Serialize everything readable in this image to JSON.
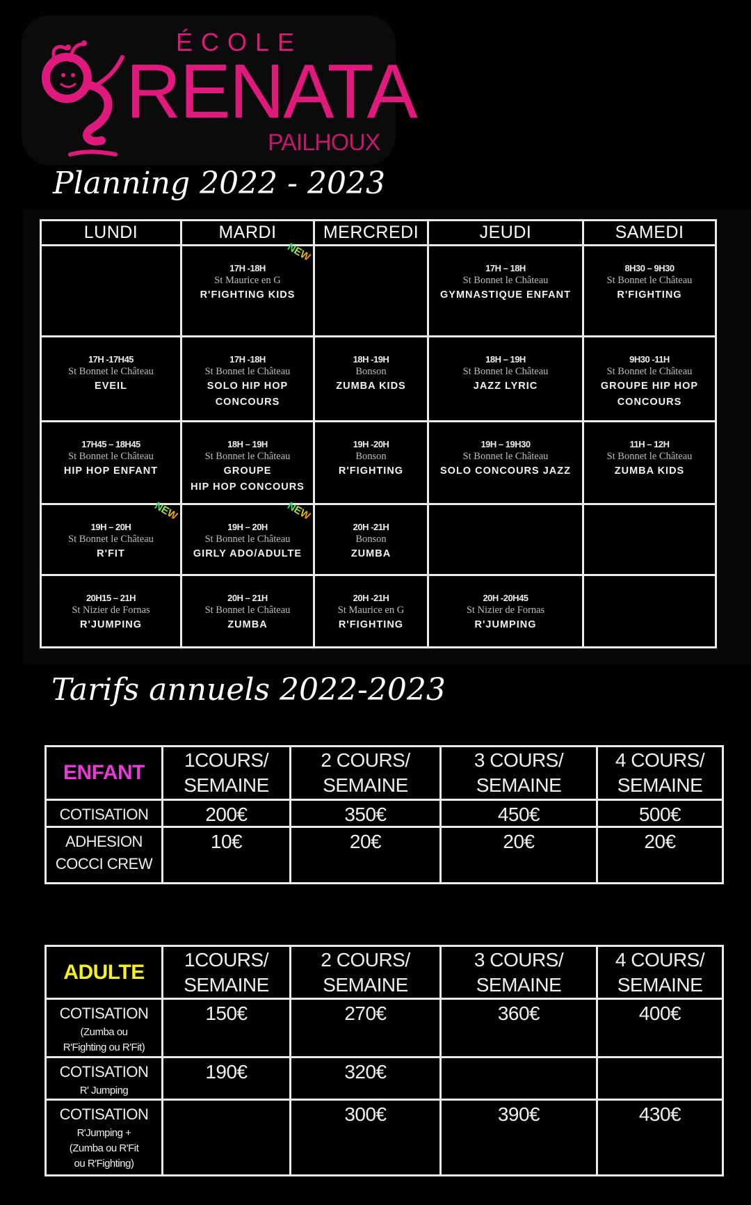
{
  "logo": {
    "ecole": "ÉCOLE",
    "renata": "RENATA",
    "pailhoux": "PAILHOUX",
    "color": "#e0197d"
  },
  "planning": {
    "title": "Planning 2022 - 2023",
    "days": [
      "LUNDI",
      "MARDI",
      "MERCREDI",
      "JEUDI",
      "SAMEDI"
    ],
    "new_badge": "NEW",
    "rows": [
      [
        null,
        {
          "time": "17H -18H",
          "location": "St Maurice en G",
          "class": [
            "R'FIGHTING KIDS"
          ],
          "new": true
        },
        null,
        {
          "time": "17H – 18H",
          "location": "St Bonnet le Château",
          "class": [
            "GYMNASTIQUE ENFANT"
          ]
        },
        {
          "time": "8H30 – 9H30",
          "location": "St Bonnet le Château",
          "class": [
            "R'FIGHTING"
          ]
        }
      ],
      [
        {
          "time": "17H -17H45",
          "location": "St Bonnet le Château",
          "class": [
            "EVEIL"
          ]
        },
        {
          "time": "17H -18H",
          "location": "St Bonnet le Château",
          "class": [
            "SOLO HIP HOP",
            "CONCOURS"
          ]
        },
        {
          "time": "18H -19H",
          "location": "Bonson",
          "class": [
            "ZUMBA KIDS"
          ]
        },
        {
          "time": "18H – 19H",
          "location": "St Bonnet le Château",
          "class": [
            "JAZZ LYRIC"
          ]
        },
        {
          "time": "9H30 -11H",
          "location": "St Bonnet le Château",
          "class": [
            "GROUPE HIP HOP",
            "CONCOURS"
          ]
        }
      ],
      [
        {
          "time": "17H45 – 18H45",
          "location": "St Bonnet le Château",
          "class": [
            "HIP HOP ENFANT"
          ]
        },
        {
          "time": "18H – 19H",
          "location": "St Bonnet le Château",
          "class": [
            "GROUPE",
            "HIP HOP CONCOURS"
          ]
        },
        {
          "time": "19H -20H",
          "location": "Bonson",
          "class": [
            "R'FIGHTING"
          ]
        },
        {
          "time": "19H – 19H30",
          "location": "St Bonnet le Château",
          "class": [
            "SOLO CONCOURS JAZZ"
          ]
        },
        {
          "time": "11H – 12H",
          "location": "St Bonnet le Château",
          "class": [
            "ZUMBA KIDS"
          ]
        }
      ],
      [
        {
          "time": "19H – 20H",
          "location": "St Bonnet le Château",
          "class": [
            "R'FIT"
          ],
          "new": true
        },
        {
          "time": "19H – 20H",
          "location": "St Bonnet le Château",
          "class": [
            "GIRLY ADO/ADULTE"
          ],
          "new": true
        },
        {
          "time": "20H -21H",
          "location": "Bonson",
          "class": [
            "ZUMBA"
          ]
        },
        null,
        null
      ],
      [
        {
          "time": "20H15 – 21H",
          "location": "St Nizier de Fornas",
          "class": [
            "R'JUMPING"
          ]
        },
        {
          "time": "20H – 21H",
          "location": "St Bonnet le Château",
          "class": [
            "ZUMBA"
          ]
        },
        {
          "time": "20H -21H",
          "location": "St Maurice en G",
          "class": [
            "R'FIGHTING"
          ]
        },
        {
          "time": "20H -20H45",
          "location": "St Nizier de Fornas",
          "class": [
            "R'JUMPING"
          ]
        },
        null
      ]
    ]
  },
  "tarifs": {
    "title": "Tarifs annuels 2022-2023",
    "columns": [
      [
        "1COURS/",
        "SEMAINE"
      ],
      [
        "2 COURS/",
        "SEMAINE"
      ],
      [
        "3 COURS/",
        "SEMAINE"
      ],
      [
        "4 COURS/",
        "SEMAINE"
      ]
    ],
    "enfant": {
      "label": "ENFANT",
      "color": "#e83ad6",
      "rows": [
        {
          "label": [
            "COTISATION"
          ],
          "values": [
            "200€",
            "350€",
            "450€",
            "500€"
          ]
        },
        {
          "label": [
            "ADHESION",
            "COCCI CREW"
          ],
          "values": [
            "10€",
            "20€",
            "20€",
            "20€"
          ]
        }
      ]
    },
    "adulte": {
      "label": "ADULTE",
      "color": "#f5f01e",
      "rows": [
        {
          "label": [
            "COTISATION"
          ],
          "sub": [
            "(Zumba ou",
            "R'Fighting ou R'Fit)"
          ],
          "values": [
            "150€",
            "270€",
            "360€",
            "400€"
          ]
        },
        {
          "label": [
            "COTISATION"
          ],
          "sub": [
            "R' Jumping"
          ],
          "values": [
            "190€",
            "320€",
            "",
            ""
          ]
        },
        {
          "label": [
            "COTISATION"
          ],
          "sub": [
            "R'Jumping +",
            "(Zumba ou R'Fit",
            "ou R'Fighting)"
          ],
          "values": [
            "",
            "300€",
            "390€",
            "430€"
          ]
        }
      ]
    }
  }
}
